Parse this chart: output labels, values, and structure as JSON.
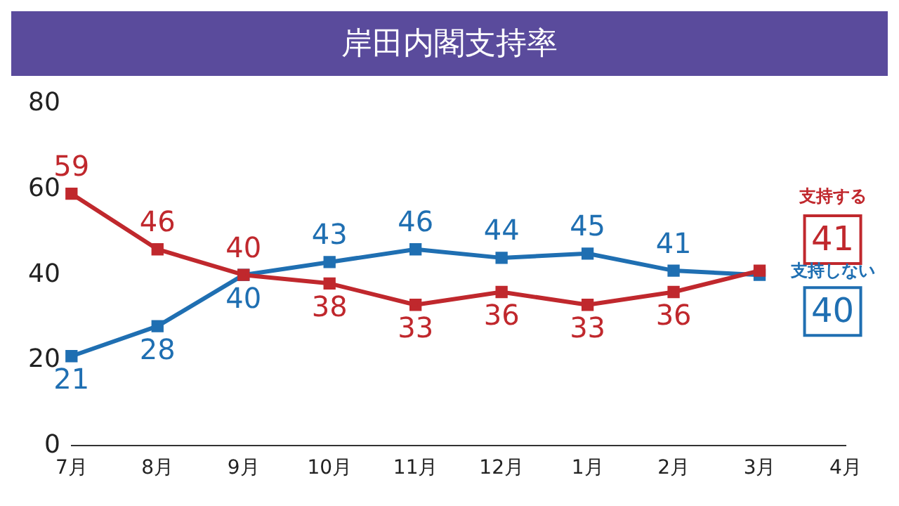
{
  "chart_data": {
    "type": "line",
    "title": "岸田内閣支持率",
    "categories": [
      "7月",
      "8月",
      "9月",
      "10月",
      "11月",
      "12月",
      "1月",
      "2月",
      "3月",
      "4月"
    ],
    "series": [
      {
        "name": "支持する",
        "color": "#c0282d",
        "values": [
          59,
          46,
          40,
          38,
          33,
          36,
          33,
          36,
          41,
          null
        ]
      },
      {
        "name": "支持しない",
        "color": "#1f6fb2",
        "values": [
          21,
          28,
          40,
          43,
          46,
          44,
          45,
          41,
          40,
          null
        ]
      }
    ],
    "ylim": [
      0,
      80
    ],
    "yticks": [
      0,
      20,
      40,
      60,
      80
    ],
    "grid": false,
    "legend": false,
    "marker": "square",
    "line_style": "solid",
    "data_labels": true
  }
}
